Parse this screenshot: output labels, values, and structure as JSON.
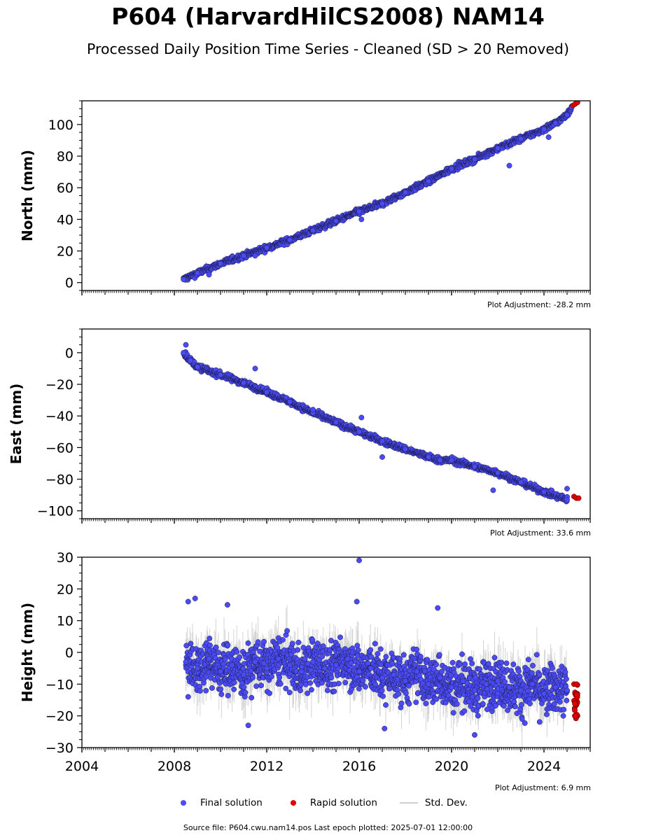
{
  "title": "P604 (HarvardHilCS2008) NAM14",
  "subtitle": "Processed Daily Position Time Series - Cleaned (SD > 20 Removed)",
  "colors": {
    "final": "#4b4bf5",
    "rapid": "#e00000",
    "stddev": "#b0b0b0"
  },
  "legend": {
    "final": "Final solution",
    "rapid": "Rapid solution",
    "stddev": "Std. Dev."
  },
  "footer": "Source file: P604.cwu.nam14.pos  Last epoch plotted: 2025-07-01 12:00:00",
  "chart_data": [
    {
      "type": "scatter",
      "ylabel": "North (mm)",
      "adjustment": "Plot Adjustment: -28.2 mm",
      "xlim": [
        2004,
        2026
      ],
      "ylim": [
        -5,
        115
      ],
      "yticks": [
        0,
        20,
        40,
        60,
        80,
        100
      ],
      "series": [
        {
          "name": "Final solution",
          "x": [
            2008.4,
            2009.0,
            2010.0,
            2011.0,
            2012.0,
            2013.0,
            2014.0,
            2015.0,
            2016.0,
            2017.0,
            2018.0,
            2019.0,
            2020.0,
            2021.0,
            2022.0,
            2023.0,
            2024.0,
            2024.5,
            2025.0,
            2025.2
          ],
          "y": [
            2,
            6,
            12,
            17,
            22,
            27,
            33,
            39,
            45,
            50,
            57,
            64,
            72,
            78,
            85,
            91,
            97,
            101,
            106,
            111
          ]
        },
        {
          "name": "Rapid solution",
          "x": [
            2025.25,
            2025.35,
            2025.45
          ],
          "y": [
            112,
            113,
            114
          ]
        }
      ],
      "outliers": {
        "x": [
          2009.5,
          2011.5,
          2016.1,
          2022.5,
          2024.2
        ],
        "y": [
          5,
          17,
          40,
          74,
          92
        ]
      }
    },
    {
      "type": "scatter",
      "ylabel": "East (mm)",
      "adjustment": "Plot Adjustment: 33.6 mm",
      "xlim": [
        2004,
        2026
      ],
      "ylim": [
        -105,
        15
      ],
      "yticks": [
        0,
        -20,
        -40,
        -60,
        -80,
        -100
      ],
      "series": [
        {
          "name": "Final solution",
          "x": [
            2008.4,
            2008.7,
            2009.0,
            2010.0,
            2011.0,
            2012.0,
            2013.0,
            2014.0,
            2015.0,
            2016.0,
            2017.0,
            2018.0,
            2019.0,
            2019.5,
            2020.0,
            2021.0,
            2022.0,
            2023.0,
            2024.0,
            2025.0
          ],
          "y": [
            0,
            -5,
            -9,
            -14,
            -19,
            -25,
            -31,
            -38,
            -44,
            -50,
            -56,
            -61,
            -66,
            -68,
            -68,
            -72,
            -76,
            -82,
            -88,
            -93
          ]
        },
        {
          "name": "Rapid solution",
          "x": [
            2025.3,
            2025.4,
            2025.5
          ],
          "y": [
            -91,
            -92,
            -92
          ]
        }
      ],
      "outliers": {
        "x": [
          2008.5,
          2011.5,
          2014.0,
          2016.1,
          2017.0,
          2021.8,
          2025.0
        ],
        "y": [
          5,
          -10,
          -36,
          -41,
          -66,
          -87,
          -86
        ]
      }
    },
    {
      "type": "scatter",
      "ylabel": "Height (mm)",
      "adjustment": "Plot Adjustment: 6.9 mm",
      "xlim": [
        2004,
        2026
      ],
      "ylim": [
        -30,
        30
      ],
      "yticks": [
        30,
        20,
        10,
        0,
        -10,
        -20,
        -30
      ],
      "xticks": [
        2004,
        2008,
        2012,
        2016,
        2020,
        2024
      ],
      "series": [
        {
          "name": "Final solution",
          "x": [
            2008.5,
            2009.0,
            2009.5,
            2010.0,
            2010.5,
            2011.0,
            2011.5,
            2012.0,
            2012.5,
            2013.0,
            2013.5,
            2014.0,
            2014.5,
            2015.0,
            2015.5,
            2016.0,
            2016.5,
            2017.0,
            2017.5,
            2018.0,
            2018.5,
            2019.0,
            2019.5,
            2020.0,
            2020.5,
            2021.0,
            2021.5,
            2022.0,
            2022.5,
            2023.0,
            2023.5,
            2024.0,
            2024.5,
            2025.0
          ],
          "y": [
            -3,
            -5,
            -2,
            -6,
            -4,
            -7,
            -3,
            -5,
            -2,
            -4,
            -6,
            -3,
            -5,
            -4,
            -2,
            -6,
            -5,
            -8,
            -7,
            -9,
            -6,
            -10,
            -8,
            -11,
            -9,
            -12,
            -10,
            -9,
            -11,
            -12,
            -10,
            -13,
            -11,
            -12
          ]
        },
        {
          "name": "Rapid solution",
          "x": [
            2025.3,
            2025.35,
            2025.4,
            2025.45
          ],
          "y": [
            -10,
            -13,
            -16,
            -20
          ]
        }
      ],
      "outliers": {
        "x": [
          2008.6,
          2008.9,
          2010.3,
          2016.0,
          2015.9,
          2019.4,
          2017.1,
          2021.0,
          2008.6,
          2011.2
        ],
        "y": [
          16,
          17,
          15,
          29,
          16,
          14,
          -24,
          -26,
          -14,
          -23
        ]
      }
    }
  ]
}
